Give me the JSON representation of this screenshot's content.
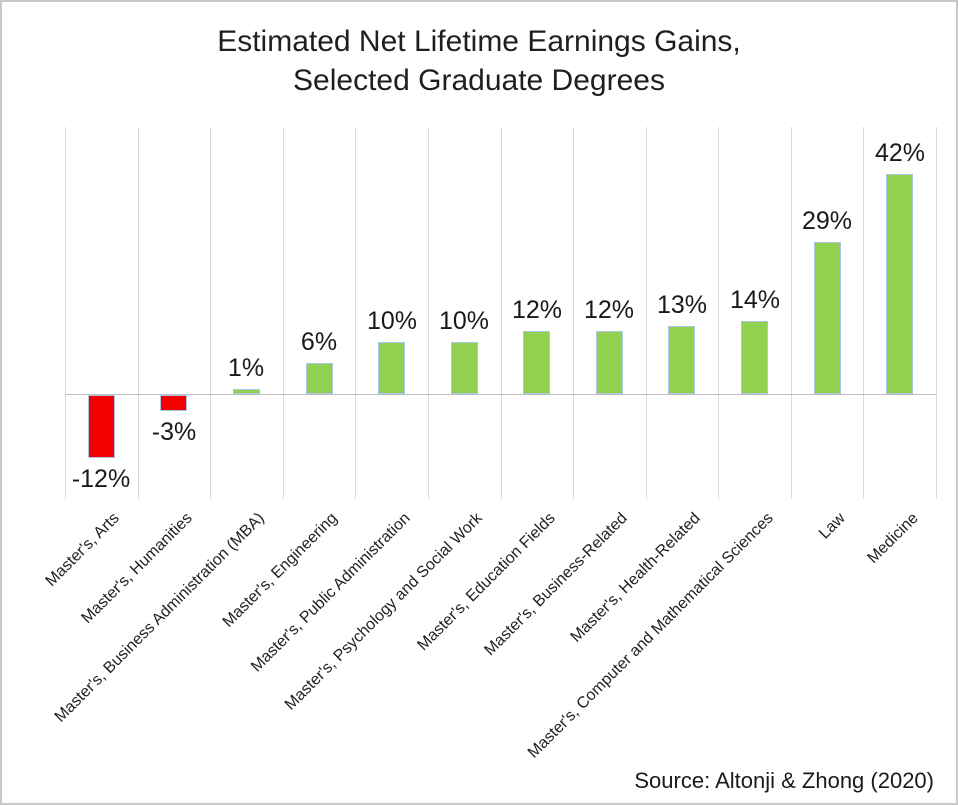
{
  "title": {
    "line1": "Estimated Net Lifetime Earnings Gains,",
    "line2": "Selected Graduate Degrees"
  },
  "source": "Source: Altonji & Zhong (2020)",
  "colors": {
    "positive_bar": "#92D050",
    "negative_bar": "#F20000",
    "bar_border": "#ADC6E6",
    "gridline": "#D9D9D9",
    "zero_line": "#BFBFBF",
    "text": "#1F1F1F"
  },
  "chart_data": {
    "type": "bar",
    "title": "Estimated Net Lifetime Earnings Gains, Selected Graduate Degrees",
    "xlabel": "",
    "ylabel": "",
    "categories": [
      "Master's, Arts",
      "Master's, Humanities",
      "Master's, Business Administration (MBA)",
      "Master's, Engineering",
      "Master's, Public Administration",
      "Master's, Psychology and Social Work",
      "Master's, Education Fields",
      "Master's, Business-Related",
      "Master's, Health-Related",
      "Master's, Computer and Mathematical Sciences",
      "Law",
      "Medicine"
    ],
    "values": [
      -12,
      -3,
      1,
      6,
      10,
      10,
      12,
      12,
      13,
      14,
      29,
      42
    ],
    "data_labels": [
      "-12%",
      "-3%",
      "1%",
      "6%",
      "10%",
      "10%",
      "12%",
      "12%",
      "13%",
      "14%",
      "29%",
      "42%"
    ],
    "ylim": [
      -20,
      51
    ],
    "grid": "vertical-category-separators-only",
    "zero_baseline": true,
    "legend": "none",
    "annotation": "Source: Altonji & Zhong (2020)"
  }
}
